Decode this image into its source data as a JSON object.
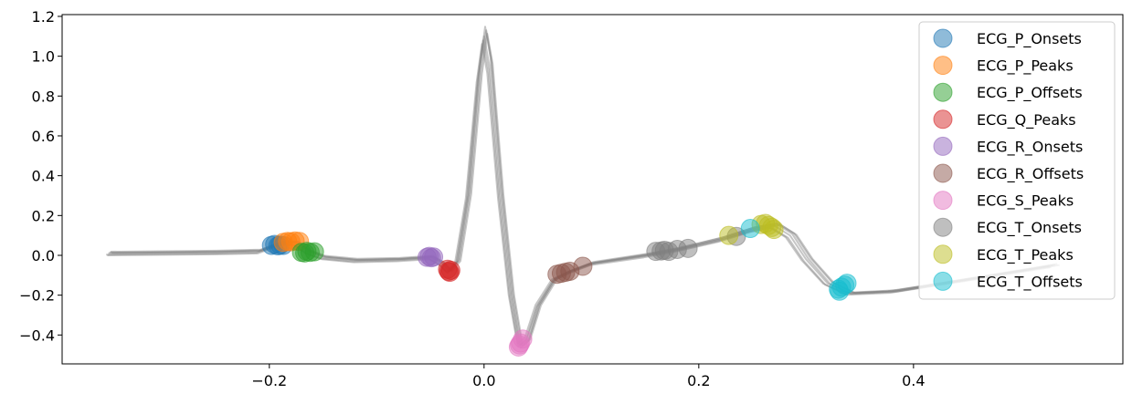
{
  "chart_data": {
    "type": "scatter",
    "title": "",
    "xlabel": "",
    "ylabel": "",
    "xlim": [
      -0.393,
      0.595
    ],
    "ylim": [
      -0.545,
      1.209
    ],
    "xticks": [
      -0.2,
      0.0,
      0.2,
      0.4
    ],
    "xtick_labels": [
      "−0.2",
      "0.0",
      "0.2",
      "0.4"
    ],
    "yticks": [
      -0.4,
      -0.2,
      0.0,
      0.2,
      0.4,
      0.6,
      0.8,
      1.0,
      1.2
    ],
    "ytick_labels": [
      "−0.4",
      "−0.2",
      "0.0",
      "0.2",
      "0.4",
      "0.6",
      "0.8",
      "1.0",
      "1.2"
    ],
    "grid": false,
    "legend_position": "top-right",
    "signal": {
      "color": "#808080",
      "x": [
        -0.35,
        -0.25,
        -0.21,
        -0.195,
        -0.185,
        -0.175,
        -0.165,
        -0.15,
        -0.12,
        -0.08,
        -0.05,
        -0.04,
        -0.033,
        -0.025,
        -0.015,
        -0.005,
        0.0,
        0.005,
        0.015,
        0.025,
        0.033,
        0.04,
        0.05,
        0.065,
        0.08,
        0.1,
        0.15,
        0.18,
        0.22,
        0.25,
        0.27,
        0.285,
        0.3,
        0.32,
        0.34,
        0.38,
        0.45,
        0.53
      ],
      "y": [
        0.01,
        0.015,
        0.02,
        0.05,
        0.065,
        0.06,
        0.02,
        -0.01,
        -0.025,
        -0.02,
        -0.01,
        -0.04,
        -0.08,
        -0.03,
        0.3,
        0.9,
        1.1,
        0.95,
        0.3,
        -0.2,
        -0.45,
        -0.42,
        -0.25,
        -0.12,
        -0.08,
        -0.04,
        0.0,
        0.03,
        0.08,
        0.13,
        0.15,
        0.1,
        -0.02,
        -0.14,
        -0.19,
        -0.18,
        -0.12,
        -0.05
      ]
    },
    "series": [
      {
        "name": "ECG_P_Onsets",
        "color": "#1f77b4",
        "x": [
          -0.198,
          -0.195,
          -0.192,
          -0.19,
          -0.187
        ],
        "y": [
          0.05,
          0.055,
          0.048,
          0.052,
          0.05
        ]
      },
      {
        "name": "ECG_P_Peaks",
        "color": "#ff7f0e",
        "x": [
          -0.187,
          -0.183,
          -0.18,
          -0.176,
          -0.172
        ],
        "y": [
          0.065,
          0.07,
          0.068,
          0.072,
          0.07
        ]
      },
      {
        "name": "ECG_P_Offsets",
        "color": "#2ca02c",
        "x": [
          -0.17,
          -0.167,
          -0.165,
          -0.162,
          -0.158
        ],
        "y": [
          0.015,
          0.012,
          0.02,
          0.015,
          0.018
        ]
      },
      {
        "name": "ECG_Q_Peaks",
        "color": "#d62728",
        "x": [
          -0.034,
          -0.033,
          -0.032,
          -0.031
        ],
        "y": [
          -0.07,
          -0.08,
          -0.085,
          -0.075
        ]
      },
      {
        "name": "ECG_R_Onsets",
        "color": "#9467bd",
        "x": [
          -0.053,
          -0.051,
          -0.049,
          -0.047
        ],
        "y": [
          -0.01,
          -0.005,
          -0.012,
          -0.008
        ]
      },
      {
        "name": "ECG_R_Offsets",
        "color": "#8c564b",
        "x": [
          0.068,
          0.072,
          0.076,
          0.08,
          0.092
        ],
        "y": [
          -0.095,
          -0.09,
          -0.085,
          -0.08,
          -0.055
        ]
      },
      {
        "name": "ECG_S_Peaks",
        "color": "#e377c2",
        "x": [
          0.032,
          0.033,
          0.034,
          0.036
        ],
        "y": [
          -0.46,
          -0.45,
          -0.44,
          -0.42
        ]
      },
      {
        "name": "ECG_T_Onsets",
        "color": "#7f7f7f",
        "x": [
          0.16,
          0.165,
          0.168,
          0.172,
          0.18,
          0.19,
          0.235
        ],
        "y": [
          0.02,
          0.022,
          0.025,
          0.02,
          0.03,
          0.035,
          0.095
        ]
      },
      {
        "name": "ECG_T_Peaks",
        "color": "#bcbd22",
        "x": [
          0.228,
          0.258,
          0.262,
          0.265,
          0.268,
          0.27
        ],
        "y": [
          0.1,
          0.155,
          0.16,
          0.15,
          0.14,
          0.13
        ]
      },
      {
        "name": "ECG_T_Offsets",
        "color": "#17becf",
        "x": [
          0.248,
          0.33,
          0.331,
          0.333,
          0.336,
          0.338
        ],
        "y": [
          0.135,
          -0.17,
          -0.18,
          -0.16,
          -0.15,
          -0.14
        ]
      }
    ]
  }
}
